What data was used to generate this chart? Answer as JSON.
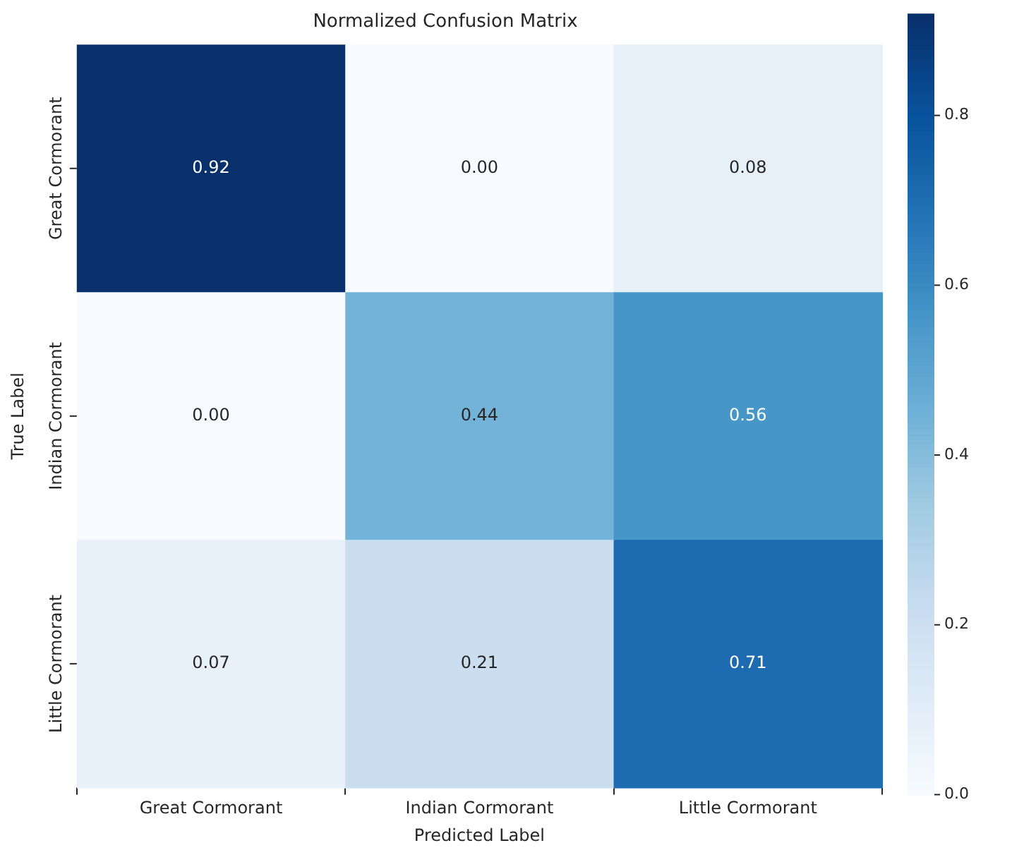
{
  "chart_data": {
    "type": "heatmap",
    "title": "Normalized Confusion Matrix",
    "xlabel": "Predicted Label",
    "ylabel": "True Label",
    "categories": [
      "Great Cormorant",
      "Indian Cormorant",
      "Little Cormorant"
    ],
    "y_categories": [
      "Great Cormorant",
      "Indian Cormorant",
      "Little Cormorant"
    ],
    "cells": [
      [
        0.92,
        0.0,
        0.08
      ],
      [
        0.0,
        0.44,
        0.56
      ],
      [
        0.07,
        0.21,
        0.71
      ]
    ],
    "cell_labels": [
      [
        "0.92",
        "0.00",
        "0.08"
      ],
      [
        "0.00",
        "0.44",
        "0.56"
      ],
      [
        "0.07",
        "0.21",
        "0.71"
      ]
    ],
    "clim": [
      0,
      0.92
    ],
    "cticks": [
      {
        "value": 0,
        "label": "0.0"
      },
      {
        "value": 0.2,
        "label": "0.2"
      },
      {
        "value": 0.4,
        "label": "0.4"
      },
      {
        "value": 0.6,
        "label": "0.6"
      },
      {
        "value": 0.8,
        "label": "0.8"
      }
    ]
  }
}
